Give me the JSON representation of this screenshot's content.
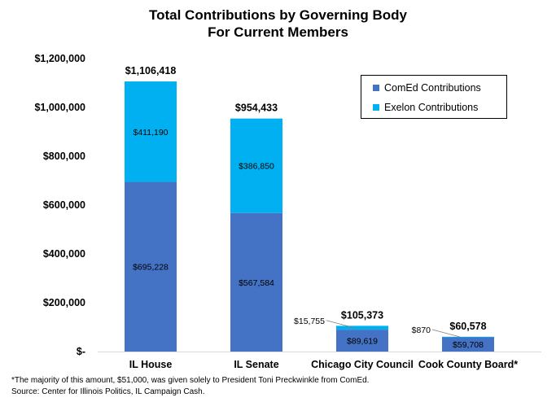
{
  "chart_data": {
    "type": "bar",
    "stacked": true,
    "title": "Total Contributions by Governing Body",
    "subtitle": "For Current Members",
    "categories": [
      "IL House",
      "IL Senate",
      "Chicago City Council",
      "Cook County Board*"
    ],
    "series": [
      {
        "name": "ComEd Contributions",
        "color": "#4472C4",
        "values": [
          695228,
          567584,
          89619,
          59708
        ],
        "labels": [
          "$695,228",
          "$567,584",
          "$89,619",
          "$59,708"
        ]
      },
      {
        "name": "Exelon Contributions",
        "color": "#00B0F0",
        "values": [
          411190,
          386850,
          15755,
          870
        ],
        "labels": [
          "$411,190",
          "$386,850",
          "$15,755",
          "$870"
        ]
      }
    ],
    "totals": [
      1106418,
      954433,
      105373,
      60578
    ],
    "total_labels": [
      "$1,106,418",
      "$954,433",
      "$105,373",
      "$60,578"
    ],
    "ylim": [
      0,
      1200000
    ],
    "yticks": [
      0,
      200000,
      400000,
      600000,
      800000,
      1000000,
      1200000
    ],
    "ytick_labels": [
      "$-",
      "$200,000",
      "$400,000",
      "$600,000",
      "$800,000",
      "$1,000,000",
      "$1,200,000"
    ],
    "xlabel": "",
    "ylabel": "",
    "grid": false,
    "legend_position": "top-right"
  },
  "footnotes": [
    "*The majority of this amount, $51,000, was given solely to President Toni Preckwinkle from ComEd.",
    "Source: Center for Illinois Politics, IL Campaign Cash."
  ]
}
